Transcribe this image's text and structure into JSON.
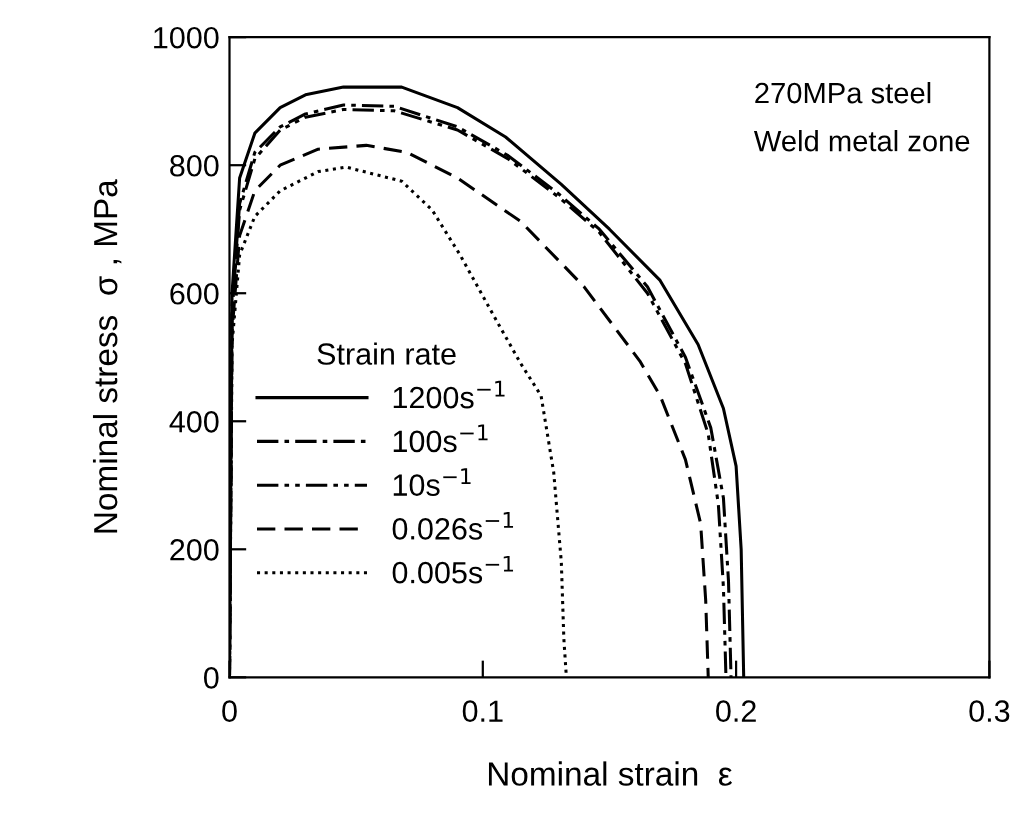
{
  "chart_data": {
    "type": "line",
    "xlabel": "Nominal strain  ε",
    "ylabel": "Nominal stress  σ , MPa",
    "legend_title": "Strain rate",
    "legend": "left",
    "grid": false,
    "xlim": [
      0,
      0.3
    ],
    "ylim": [
      0,
      1000
    ],
    "xticks": [
      0,
      0.1,
      0.2,
      0.3
    ],
    "yticks": [
      0,
      200,
      400,
      600,
      800,
      1000
    ],
    "annotations": [
      "270MPa steel",
      "Weld metal zone"
    ],
    "series": [
      {
        "name": "1200s$^{−1}$",
        "color": "#000000",
        "line_style": "solid",
        "x": [
          0,
          0.001,
          0.004,
          0.01,
          0.02,
          0.03,
          0.045,
          0.068,
          0.09,
          0.109,
          0.131,
          0.15,
          0.17,
          0.185,
          0.195,
          0.2,
          0.202,
          0.203
        ],
        "values": [
          0,
          600,
          780,
          850,
          890,
          910,
          922,
          922,
          890,
          844,
          770,
          700,
          620,
          520,
          420,
          330,
          200,
          0
        ]
      },
      {
        "name": "100s$^{−1}$",
        "color": "#000000",
        "line_style": "dashdot",
        "x": [
          0,
          0.001,
          0.004,
          0.01,
          0.02,
          0.03,
          0.045,
          0.065,
          0.09,
          0.11,
          0.13,
          0.146,
          0.165,
          0.18,
          0.19,
          0.195,
          0.197,
          0.198
        ],
        "values": [
          0,
          580,
          740,
          820,
          860,
          880,
          894,
          892,
          860,
          815,
          755,
          700,
          610,
          500,
          390,
          280,
          150,
          0
        ]
      },
      {
        "name": "10s$^{−1}$",
        "color": "#000000",
        "line_style": "dashdotdot",
        "x": [
          0,
          0.001,
          0.004,
          0.01,
          0.02,
          0.03,
          0.045,
          0.065,
          0.09,
          0.11,
          0.13,
          0.146,
          0.165,
          0.18,
          0.189,
          0.193,
          0.195,
          0.196
        ],
        "values": [
          0,
          570,
          730,
          810,
          855,
          875,
          887,
          885,
          855,
          810,
          750,
          695,
          600,
          490,
          380,
          270,
          140,
          0
        ]
      },
      {
        "name": "0.026s$^{−1}$",
        "color": "#000000",
        "line_style": "dashed",
        "x": [
          0,
          0.001,
          0.004,
          0.01,
          0.02,
          0.035,
          0.054,
          0.07,
          0.09,
          0.115,
          0.14,
          0.162,
          0.17,
          0.18,
          0.186,
          0.188,
          0.189
        ],
        "values": [
          0,
          540,
          690,
          760,
          800,
          825,
          831,
          820,
          780,
          712,
          610,
          494,
          440,
          340,
          240,
          120,
          0
        ]
      },
      {
        "name": "0.005s$^{−1}$",
        "color": "#000000",
        "line_style": "dotted",
        "x": [
          0,
          0.001,
          0.004,
          0.01,
          0.02,
          0.035,
          0.046,
          0.068,
          0.08,
          0.091,
          0.105,
          0.115,
          0.123,
          0.128,
          0.131,
          0.132,
          0.133
        ],
        "values": [
          0,
          520,
          660,
          720,
          760,
          790,
          797,
          775,
          730,
          660,
          560,
          490,
          440,
          320,
          180,
          60,
          0
        ]
      }
    ]
  }
}
